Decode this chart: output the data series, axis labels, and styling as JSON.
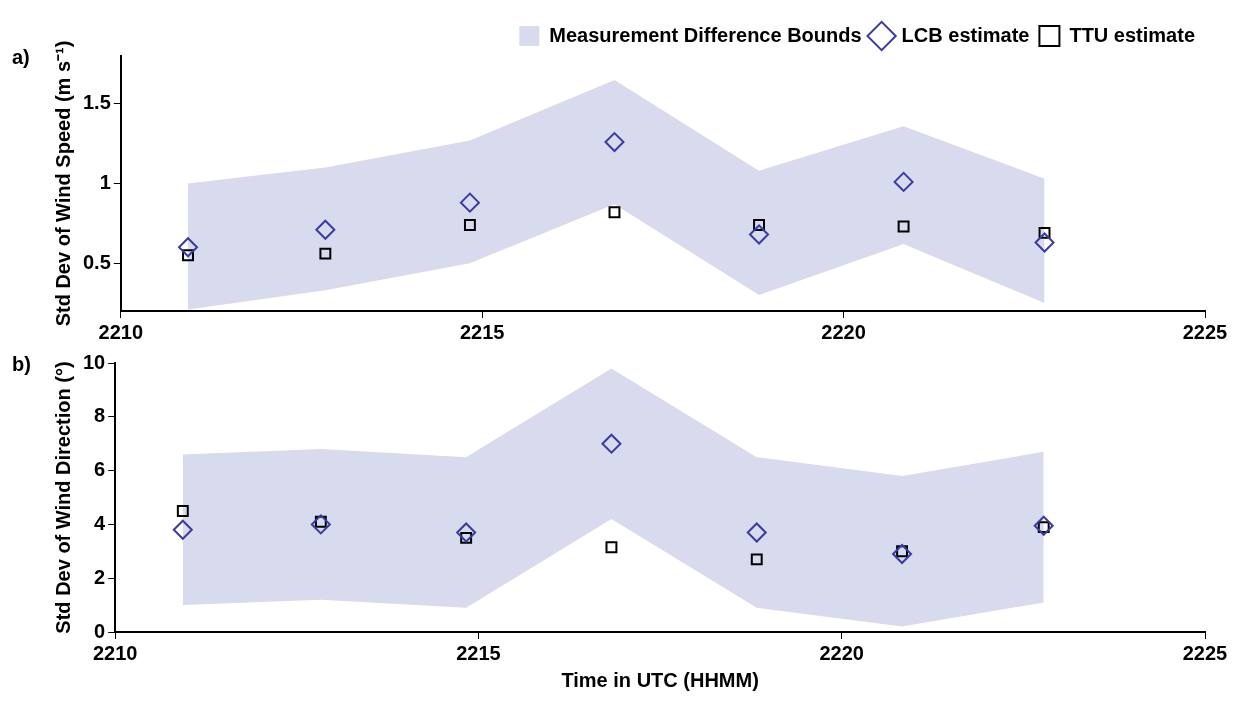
{
  "chart_data": [
    {
      "type": "scatter",
      "annotations": [
        "a)"
      ],
      "ylabel": "Std Dev of Wind Speed (m s⁻¹)",
      "x": [
        2210.93,
        2212.83,
        2214.83,
        2216.83,
        2218.83,
        2220.83,
        2222.78
      ],
      "xlim": [
        2210,
        2225
      ],
      "xticks": [
        2210,
        2215,
        2220,
        2225
      ],
      "ylim": [
        0.2,
        1.8
      ],
      "yticks": [
        0.5,
        1,
        1.5
      ],
      "grid": false,
      "legend": "top right",
      "series": [
        {
          "name": "Measurement Difference Bounds",
          "type": "area",
          "color": "#d8daee",
          "values": [
            null,
            null,
            null,
            null,
            null,
            null,
            null
          ],
          "lower": [
            0.21,
            0.33,
            0.5,
            0.87,
            0.3,
            0.62,
            0.25
          ],
          "upper": [
            1.0,
            1.1,
            1.27,
            1.65,
            1.08,
            1.36,
            1.03
          ]
        },
        {
          "name": "LCB estimate",
          "marker": "diamond",
          "color": "#3b3ba0",
          "values": [
            0.6,
            0.71,
            0.88,
            1.26,
            0.68,
            1.01,
            0.63
          ]
        },
        {
          "name": "TTU estimate",
          "marker": "square",
          "color": "#000000",
          "values": [
            0.55,
            0.56,
            0.74,
            0.82,
            0.74,
            0.73,
            0.69
          ]
        }
      ]
    },
    {
      "type": "scatter",
      "annotations": [
        "b)"
      ],
      "xlabel": "Time in UTC (HHMM)",
      "ylabel": "Std Dev of Wind Direction (°)",
      "x": [
        2210.93,
        2212.83,
        2214.83,
        2216.83,
        2218.83,
        2220.83,
        2222.78
      ],
      "xlim": [
        2210,
        2225
      ],
      "xticks": [
        2210,
        2215,
        2220,
        2225
      ],
      "ylim": [
        0,
        10
      ],
      "yticks": [
        0,
        2,
        4,
        6,
        8,
        10
      ],
      "grid": false,
      "series": [
        {
          "type": "area",
          "color": "#d8daee",
          "values": [
            null,
            null,
            null,
            null,
            null,
            null,
            null
          ],
          "lower": [
            1.0,
            1.2,
            0.9,
            4.2,
            0.9,
            0.2,
            1.1
          ],
          "upper": [
            6.6,
            6.8,
            6.5,
            9.8,
            6.5,
            5.8,
            6.7
          ]
        },
        {
          "marker": "diamond",
          "color": "#3b3ba0",
          "values": [
            3.8,
            4.0,
            3.7,
            7.0,
            3.7,
            2.9,
            3.95
          ]
        },
        {
          "marker": "square",
          "color": "#000000",
          "values": [
            4.5,
            4.1,
            3.5,
            3.15,
            2.7,
            3.0,
            3.9
          ]
        }
      ]
    }
  ]
}
